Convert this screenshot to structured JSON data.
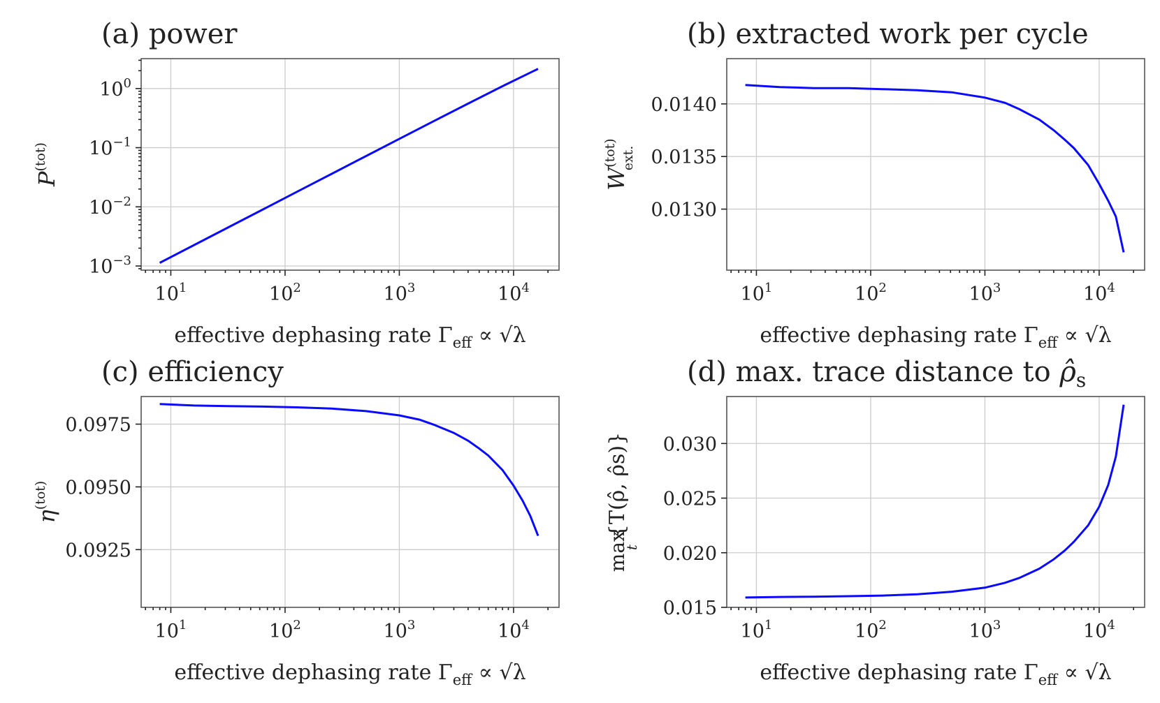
{
  "chart_data": [
    {
      "type": "line",
      "panel": "a",
      "title": "(a) power",
      "xlabel": "effective dephasing rate Γeff ∝ √λ",
      "xlabel_parts": {
        "prefix": "effective dephasing rate Γ",
        "sub": "eff",
        "suffix": " ∝ √λ"
      },
      "ylabel": {
        "main": "P",
        "sup": "(tot)"
      },
      "xscale": "log",
      "yscale": "log",
      "xlim": [
        5.5,
        25000
      ],
      "ylim": [
        0.00085,
        3.2
      ],
      "xticks": [
        {
          "value": 10,
          "base": "10",
          "exp": "1"
        },
        {
          "value": 100,
          "base": "10",
          "exp": "2"
        },
        {
          "value": 1000,
          "base": "10",
          "exp": "3"
        },
        {
          "value": 10000,
          "base": "10",
          "exp": "4"
        }
      ],
      "yticks": [
        {
          "value": 0.001,
          "base": "10",
          "exp": "−3"
        },
        {
          "value": 0.01,
          "base": "10",
          "exp": "−2"
        },
        {
          "value": 0.1,
          "base": "10",
          "exp": "−1"
        },
        {
          "value": 1,
          "base": "10",
          "exp": "0"
        }
      ],
      "series": [
        {
          "name": "P(tot)",
          "color": "#0a0aff",
          "x": [
            8,
            16,
            32,
            64,
            128,
            256,
            512,
            1024,
            2048,
            4096,
            8192,
            16384
          ],
          "y": [
            0.00113,
            0.00226,
            0.00452,
            0.00904,
            0.0181,
            0.0361,
            0.0722,
            0.144,
            0.287,
            0.57,
            1.12,
            2.15
          ]
        }
      ]
    },
    {
      "type": "line",
      "panel": "b",
      "title": "(b) extracted work per cycle",
      "xlabel": "effective dephasing rate Γeff ∝ √λ",
      "xlabel_parts": {
        "prefix": "effective dephasing rate Γ",
        "sub": "eff",
        "suffix": " ∝ √λ"
      },
      "ylabel": {
        "main": "W",
        "sup": "(tot)",
        "sub": "ext."
      },
      "xscale": "log",
      "yscale": "linear",
      "xlim": [
        5.5,
        25000
      ],
      "ylim": [
        0.01242,
        0.01443
      ],
      "xticks": [
        {
          "value": 10,
          "base": "10",
          "exp": "1"
        },
        {
          "value": 100,
          "base": "10",
          "exp": "2"
        },
        {
          "value": 1000,
          "base": "10",
          "exp": "3"
        },
        {
          "value": 10000,
          "base": "10",
          "exp": "4"
        }
      ],
      "yticks": [
        {
          "value": 0.013,
          "label": "0.0130"
        },
        {
          "value": 0.0135,
          "label": "0.0135"
        },
        {
          "value": 0.014,
          "label": "0.0140"
        }
      ],
      "series": [
        {
          "name": "W ext. (tot)",
          "color": "#0a0aff",
          "x": [
            8,
            16,
            32,
            64,
            128,
            256,
            512,
            1000,
            1500,
            2000,
            3000,
            4000,
            5000,
            6000,
            8000,
            10000,
            12000,
            14000,
            16384
          ],
          "y": [
            0.01418,
            0.01416,
            0.01415,
            0.01415,
            0.01414,
            0.01413,
            0.01411,
            0.01406,
            0.01401,
            0.01395,
            0.01385,
            0.01375,
            0.01366,
            0.01358,
            0.01342,
            0.01324,
            0.01308,
            0.01293,
            0.01259
          ]
        }
      ]
    },
    {
      "type": "line",
      "panel": "c",
      "title": "(c) efficiency",
      "xlabel": "effective dephasing rate Γeff ∝ √λ",
      "xlabel_parts": {
        "prefix": "effective dephasing rate Γ",
        "sub": "eff",
        "suffix": " ∝ √λ"
      },
      "ylabel": {
        "main": "η",
        "sup": "(tot)"
      },
      "xscale": "log",
      "yscale": "linear",
      "xlim": [
        5.5,
        25000
      ],
      "ylim": [
        0.0902,
        0.0986
      ],
      "xticks": [
        {
          "value": 10,
          "base": "10",
          "exp": "1"
        },
        {
          "value": 100,
          "base": "10",
          "exp": "2"
        },
        {
          "value": 1000,
          "base": "10",
          "exp": "3"
        },
        {
          "value": 10000,
          "base": "10",
          "exp": "4"
        }
      ],
      "yticks": [
        {
          "value": 0.0925,
          "label": "0.0925"
        },
        {
          "value": 0.095,
          "label": "0.0950"
        },
        {
          "value": 0.0975,
          "label": "0.0975"
        }
      ],
      "series": [
        {
          "name": "η(tot)",
          "color": "#0a0aff",
          "x": [
            8,
            16,
            32,
            64,
            128,
            256,
            512,
            1000,
            1500,
            2000,
            3000,
            4000,
            5000,
            6000,
            8000,
            10000,
            12000,
            14000,
            16384
          ],
          "y": [
            0.0983,
            0.09824,
            0.09822,
            0.0982,
            0.09817,
            0.09812,
            0.09802,
            0.09785,
            0.09768,
            0.09748,
            0.09715,
            0.09684,
            0.09653,
            0.09625,
            0.09567,
            0.09505,
            0.09445,
            0.09385,
            0.09305
          ]
        }
      ]
    },
    {
      "type": "line",
      "panel": "d",
      "title": "(d) max. trace distance to ρ̂s",
      "title_parts": {
        "prefix": "(d) max. trace distance to ",
        "sym": "ρ̂",
        "sub": "s"
      },
      "xlabel": "effective dephasing rate Γeff ∝ √λ",
      "xlabel_parts": {
        "prefix": "effective dephasing rate Γ",
        "sub": "eff",
        "suffix": " ∝ √λ"
      },
      "ylabel": {
        "main": "max",
        "arg": "{T(ρ̂, ρ̂s)}",
        "sub": "t"
      },
      "xscale": "log",
      "yscale": "linear",
      "xlim": [
        5.5,
        25000
      ],
      "ylim": [
        0.015,
        0.0343
      ],
      "xticks": [
        {
          "value": 10,
          "base": "10",
          "exp": "1"
        },
        {
          "value": 100,
          "base": "10",
          "exp": "2"
        },
        {
          "value": 1000,
          "base": "10",
          "exp": "3"
        },
        {
          "value": 10000,
          "base": "10",
          "exp": "4"
        }
      ],
      "yticks": [
        {
          "value": 0.015,
          "label": "0.015"
        },
        {
          "value": 0.02,
          "label": "0.020"
        },
        {
          "value": 0.025,
          "label": "0.025"
        },
        {
          "value": 0.03,
          "label": "0.030"
        }
      ],
      "series": [
        {
          "name": "max_t T",
          "color": "#0a0aff",
          "x": [
            8,
            16,
            32,
            64,
            128,
            256,
            512,
            1000,
            1500,
            2000,
            3000,
            4000,
            5000,
            6000,
            8000,
            10000,
            12000,
            14000,
            16384
          ],
          "y": [
            0.0159,
            0.01595,
            0.01598,
            0.01602,
            0.01608,
            0.0162,
            0.01643,
            0.0168,
            0.01725,
            0.0177,
            0.01855,
            0.0194,
            0.0202,
            0.021,
            0.0225,
            0.0242,
            0.0262,
            0.0288,
            0.03355
          ]
        }
      ]
    }
  ]
}
